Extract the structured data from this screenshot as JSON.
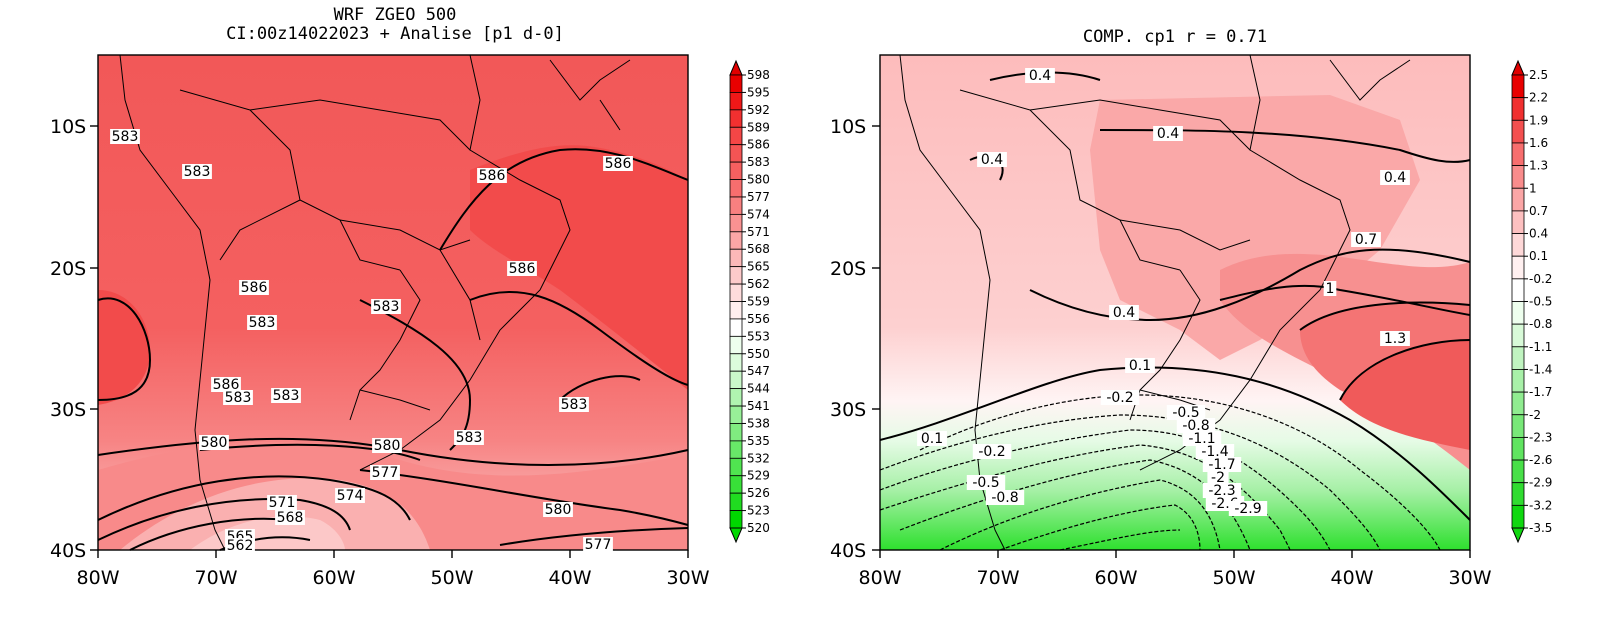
{
  "left_panel": {
    "title_line1": "WRF ZGEO 500",
    "title_line2": "CI:00z14022023 + Analise  [p1 d-0]",
    "y_ticks": [
      "10S",
      "20S",
      "30S",
      "40S"
    ],
    "x_ticks": [
      "80W",
      "70W",
      "60W",
      "50W",
      "40W",
      "30W"
    ],
    "contour_labels": [
      "583",
      "583",
      "586",
      "586",
      "586",
      "586",
      "583",
      "583",
      "583",
      "586",
      "583",
      "583",
      "583",
      "580",
      "580",
      "577",
      "574",
      "571",
      "568",
      "565",
      "562",
      "580",
      "577"
    ],
    "colorbar_levels": [
      "598",
      "595",
      "592",
      "589",
      "586",
      "583",
      "580",
      "577",
      "574",
      "571",
      "568",
      "565",
      "562",
      "559",
      "556",
      "553",
      "550",
      "547",
      "544",
      "541",
      "538",
      "535",
      "532",
      "529",
      "526",
      "523",
      "520"
    ],
    "colorbar_colors": [
      "#e80000",
      "#f01818",
      "#f23030",
      "#f44646",
      "#f45454",
      "#f66060",
      "#f76e6e",
      "#f88080",
      "#f99292",
      "#fba6a6",
      "#fcb8b8",
      "#fdcaca",
      "#fedcdc",
      "#ffeeee",
      "#ffffff",
      "#eeffee",
      "#dcfcdc",
      "#caf8ca",
      "#b0f4b0",
      "#98f098",
      "#80ec80",
      "#68e868",
      "#50e450",
      "#38e038",
      "#20dc20",
      "#00d800"
    ]
  },
  "right_panel": {
    "title": "COMP. cp1   r =   0.71",
    "y_ticks": [
      "10S",
      "20S",
      "30S",
      "40S"
    ],
    "x_ticks": [
      "80W",
      "70W",
      "60W",
      "50W",
      "40W",
      "30W"
    ],
    "contour_labels": [
      "0.4",
      "0.4",
      "0.4",
      "0.4",
      "0.7",
      "1",
      "0.4",
      "1.3",
      "0.1",
      "-0.2",
      "0.1",
      "-0.2",
      "-0.5",
      "-0.8",
      "-1.1",
      "-1.4",
      "-1.7",
      "-2",
      "-2.3",
      "-2.6",
      "-2.9",
      "-0.5",
      "-0.8"
    ],
    "colorbar_levels": [
      "2.5",
      "2.2",
      "1.9",
      "1.6",
      "1.3",
      "1",
      "0.7",
      "0.4",
      "0.1",
      "-0.2",
      "-0.5",
      "-0.8",
      "-1.1",
      "-1.4",
      "-1.7",
      "-2",
      "-2.3",
      "-2.6",
      "-2.9",
      "-3.2",
      "-3.5"
    ],
    "colorbar_colors": [
      "#e80000",
      "#f03030",
      "#f35050",
      "#f76e6e",
      "#f98c8c",
      "#fba6a6",
      "#fdc0c0",
      "#fed8d8",
      "#fff0f0",
      "#ffffff",
      "#eeffee",
      "#d8fad8",
      "#c0f4c0",
      "#a8f0a8",
      "#90ec90",
      "#78e878",
      "#60e460",
      "#48e048",
      "#30dc30",
      "#10d810"
    ]
  }
}
